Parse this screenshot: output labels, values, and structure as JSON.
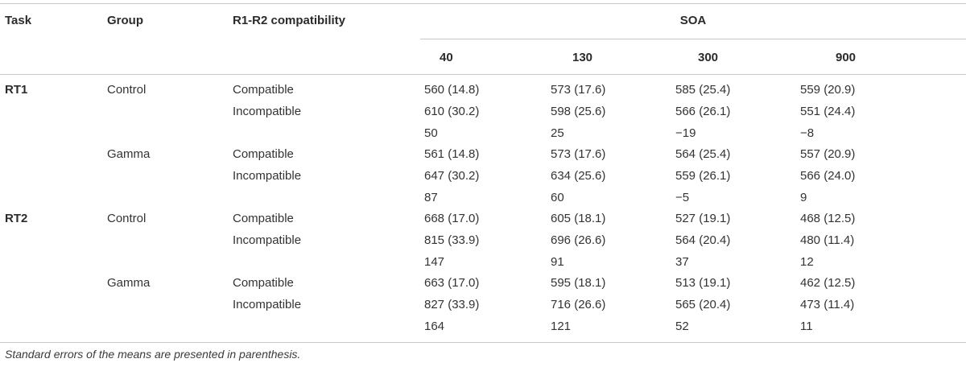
{
  "header": {
    "task": "Task",
    "group": "Group",
    "compat": "R1-R2 compatibility",
    "soa": "SOA",
    "soa_levels": [
      "40",
      "130",
      "300",
      "900"
    ]
  },
  "rows": [
    {
      "task": "RT1",
      "group": "Control",
      "compat": "Compatible",
      "values": [
        "560 (14.8)",
        "573 (17.6)",
        "585 (25.4)",
        "559 (20.9)"
      ]
    },
    {
      "task": "",
      "group": "",
      "compat": "Incompatible",
      "values": [
        "610 (30.2)",
        "598 (25.6)",
        "566 (26.1)",
        "551 (24.4)"
      ]
    },
    {
      "task": "",
      "group": "",
      "compat": "",
      "values": [
        "50",
        "25",
        "−19",
        "−8"
      ]
    },
    {
      "task": "",
      "group": "Gamma",
      "compat": "Compatible",
      "values": [
        "561 (14.8)",
        "573 (17.6)",
        "564 (25.4)",
        "557 (20.9)"
      ]
    },
    {
      "task": "",
      "group": "",
      "compat": "Incompatible",
      "values": [
        "647 (30.2)",
        "634 (25.6)",
        "559 (26.1)",
        "566 (24.0)"
      ]
    },
    {
      "task": "",
      "group": "",
      "compat": "",
      "values": [
        "87",
        "60",
        "−5",
        "9"
      ]
    },
    {
      "task": "RT2",
      "group": "Control",
      "compat": "Compatible",
      "values": [
        "668 (17.0)",
        "605 (18.1)",
        "527 (19.1)",
        "468 (12.5)"
      ]
    },
    {
      "task": "",
      "group": "",
      "compat": "Incompatible",
      "values": [
        "815 (33.9)",
        "696 (26.6)",
        "564 (20.4)",
        "480 (11.4)"
      ]
    },
    {
      "task": "",
      "group": "",
      "compat": "",
      "values": [
        "147",
        "91",
        "37",
        "12"
      ]
    },
    {
      "task": "",
      "group": "Gamma",
      "compat": "Compatible",
      "values": [
        "663 (17.0)",
        "595 (18.1)",
        "513 (19.1)",
        "462 (12.5)"
      ]
    },
    {
      "task": "",
      "group": "",
      "compat": "Incompatible",
      "values": [
        "827 (33.9)",
        "716 (26.6)",
        "565 (20.4)",
        "473 (11.4)"
      ]
    },
    {
      "task": "",
      "group": "",
      "compat": "",
      "values": [
        "164",
        "121",
        "52",
        "11"
      ]
    }
  ],
  "footnote": "Standard errors of the means are presented in parenthesis."
}
